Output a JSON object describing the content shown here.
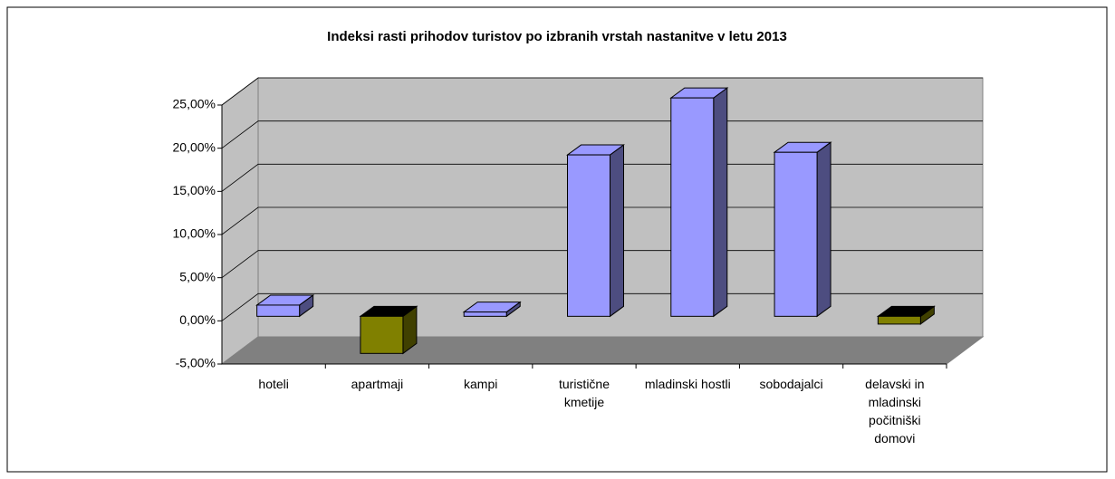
{
  "chart_data": {
    "type": "bar3d",
    "title": "Indeksi  rasti  prihodov  turistov po izbranih vrstah nastanitve  v letu 2013",
    "categories": [
      "hoteli",
      "apartmaji",
      "kampi",
      "turistične kmetije",
      "mladinski hostli",
      "sobodajalci",
      "delavski in mladinski počitniški domovi"
    ],
    "values": [
      1.3,
      -4.3,
      0.5,
      18.7,
      25.3,
      19,
      -0.9
    ],
    "color": "#9999ff",
    "negative_color": "#808000",
    "ylim": [
      -5,
      25
    ],
    "yticks": [
      {
        "value": -5,
        "label": "-5,00%"
      },
      {
        "value": 0,
        "label": "0,00%"
      },
      {
        "value": 5,
        "label": "5,00%"
      },
      {
        "value": 10,
        "label": "10,00%"
      },
      {
        "value": 15,
        "label": "15,00%"
      },
      {
        "value": 20,
        "label": "20,00%"
      },
      {
        "value": 25,
        "label": "25,00%"
      }
    ],
    "grid": true
  }
}
